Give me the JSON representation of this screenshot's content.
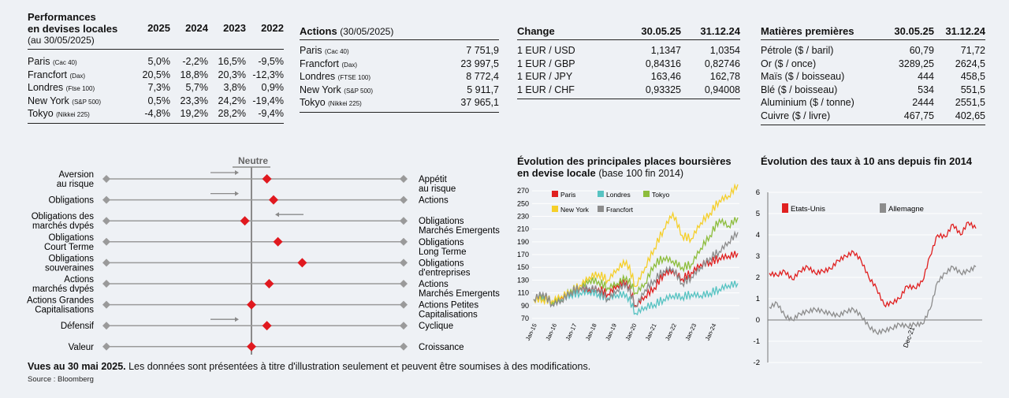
{
  "perf": {
    "title1": "Performances",
    "title2": "en devises locales",
    "subtitle": "(au 30/05/2025)",
    "years": [
      "2025",
      "2024",
      "2023",
      "2022"
    ],
    "rows": [
      {
        "name": "Paris",
        "index": "(Cac 40)",
        "values": [
          "5,0%",
          "-2,2%",
          "16,5%",
          "-9,5%"
        ]
      },
      {
        "name": "Francfort",
        "index": "(Dax)",
        "values": [
          "20,5%",
          "18,8%",
          "20,3%",
          "-12,3%"
        ]
      },
      {
        "name": "Londres",
        "index": "(Ftse 100)",
        "values": [
          "7,3%",
          "5,7%",
          "3,8%",
          "0,9%"
        ]
      },
      {
        "name": "New York",
        "index": "(S&P 500)",
        "values": [
          "0,5%",
          "23,3%",
          "24,2%",
          "-19,4%"
        ]
      },
      {
        "name": "Tokyo",
        "index": "(Nikkei 225)",
        "values": [
          "-4,8%",
          "19,2%",
          "28,2%",
          "-9,4%"
        ]
      }
    ]
  },
  "actions": {
    "title": "Actions",
    "date": "(30/05/2025)",
    "rows": [
      {
        "name": "Paris",
        "index": "(Cac 40)",
        "value": "7 751,9"
      },
      {
        "name": "Francfort",
        "index": "(Dax)",
        "value": "23 997,5"
      },
      {
        "name": "Londres",
        "index": "(FTSE 100)",
        "value": "8 772,4"
      },
      {
        "name": "New York",
        "index": "(S&P 500)",
        "value": "5 911,7"
      },
      {
        "name": "Tokyo",
        "index": "(Nikkei 225)",
        "value": "37 965,1"
      }
    ]
  },
  "change": {
    "title": "Change",
    "col1": "30.05.25",
    "col2": "31.12.24",
    "rows": [
      {
        "pair": "1 EUR / USD",
        "v1": "1,1347",
        "v2": "1,0354"
      },
      {
        "pair": "1 EUR / GBP",
        "v1": "0,84316",
        "v2": "0,82746"
      },
      {
        "pair": "1 EUR / JPY",
        "v1": "163,46",
        "v2": "162,78"
      },
      {
        "pair": "1 EUR / CHF",
        "v1": "0,93325",
        "v2": "0,94008"
      }
    ]
  },
  "commodities": {
    "title": "Matières premières",
    "col1": "30.05.25",
    "col2": "31.12.24",
    "rows": [
      {
        "name": "Pétrole ($ / baril)",
        "v1": "60,79",
        "v2": "71,72"
      },
      {
        "name": "Or ($ / once)",
        "v1": "3289,25",
        "v2": "2624,5"
      },
      {
        "name": "Maïs ($ / boisseau)",
        "v1": "444",
        "v2": "458,5"
      },
      {
        "name": "Blé ($ / boisseau)",
        "v1": "534",
        "v2": "551,5"
      },
      {
        "name": "Aluminium ($ / tonne)",
        "v1": "2444",
        "v2": "2551,5"
      },
      {
        "name": "Cuivre ($ / livre)",
        "v1": "467,75",
        "v2": "402,65"
      }
    ]
  },
  "views": {
    "header": "Neutre",
    "rows": [
      {
        "left": [
          "Aversion",
          "au risque"
        ],
        "right": [
          "Appétit",
          "au risque"
        ],
        "position": 0.7,
        "arrow": "right"
      },
      {
        "left": [
          "Obligations"
        ],
        "right": [
          "Actions"
        ],
        "position": 1.0,
        "arrow": "right"
      },
      {
        "left": [
          "Obligations des",
          "marchés dvpés"
        ],
        "right": [
          "Obligations",
          "Marchés Emergents"
        ],
        "position": -0.3,
        "arrow": "left"
      },
      {
        "left": [
          "Obligations",
          "Court Terme"
        ],
        "right": [
          "Obligations",
          "Long Terme"
        ],
        "position": 1.2,
        "arrow": "none"
      },
      {
        "left": [
          "Obligations",
          "souveraines"
        ],
        "right": [
          "Obligations",
          "d'entreprises"
        ],
        "position": 2.3,
        "arrow": "none"
      },
      {
        "left": [
          "Actions",
          "marchés dvpés"
        ],
        "right": [
          "Actions",
          "Marchés Emergents"
        ],
        "position": 0.8,
        "arrow": "none"
      },
      {
        "left": [
          "Actions Grandes",
          "Capitalisations"
        ],
        "right": [
          "Actions Petites",
          "Capitalisations"
        ],
        "position": 0.0,
        "arrow": "none"
      },
      {
        "left": [
          "Défensif"
        ],
        "right": [
          "Cyclique"
        ],
        "position": 0.7,
        "arrow": "right"
      },
      {
        "left": [
          "Valeur"
        ],
        "right": [
          "Croissance"
        ],
        "position": 0.0,
        "arrow": "none"
      }
    ]
  },
  "chart_data": [
    {
      "type": "line",
      "title": "Évolution des principales places boursières",
      "title2": "en devise locale",
      "subtitle": "(base 100 fin 2014)",
      "x": [
        "2015",
        "2015.5",
        "2016",
        "2016.5",
        "2017",
        "2017.5",
        "2018",
        "2018.5",
        "2019",
        "2019.5",
        "2020",
        "2020.2",
        "2020.5",
        "2021",
        "2021.5",
        "2022",
        "2022.5",
        "2023",
        "2023.5",
        "2024",
        "2024.5",
        "2025",
        "2025.4"
      ],
      "xticks": [
        "Jan-15",
        "Jan-16",
        "Jan-17",
        "Jan-18",
        "Jan-19",
        "Jan-20",
        "Jan-21",
        "Jan-22",
        "Jan-23",
        "Jan-24"
      ],
      "yticks": [
        70,
        90,
        110,
        130,
        150,
        170,
        190,
        210,
        230,
        250,
        270
      ],
      "ylim": [
        70,
        280
      ],
      "series": [
        {
          "name": "Paris",
          "color": "#e02020",
          "values": [
            100,
            108,
            95,
            104,
            110,
            118,
            115,
            117,
            108,
            122,
            128,
            90,
            105,
            118,
            140,
            145,
            132,
            142,
            155,
            158,
            165,
            168,
            172
          ]
        },
        {
          "name": "Londres",
          "color": "#57c3c2",
          "values": [
            100,
            103,
            96,
            100,
            108,
            110,
            112,
            108,
            102,
            107,
            108,
            78,
            88,
            92,
            100,
            106,
            104,
            108,
            106,
            110,
            116,
            122,
            125
          ]
        },
        {
          "name": "Tokyo",
          "color": "#8dbd3c",
          "values": [
            100,
            108,
            95,
            98,
            115,
            118,
            130,
            128,
            118,
            125,
            135,
            110,
            125,
            155,
            165,
            160,
            150,
            155,
            180,
            200,
            225,
            215,
            228
          ]
        },
        {
          "name": "New York",
          "color": "#f5cf2a",
          "values": [
            100,
            100,
            98,
            105,
            112,
            122,
            135,
            140,
            130,
            148,
            160,
            120,
            150,
            180,
            210,
            235,
            200,
            195,
            220,
            235,
            255,
            262,
            280
          ]
        },
        {
          "name": "Francfort",
          "color": "#8c8c8c",
          "values": [
            100,
            110,
            92,
            98,
            112,
            118,
            118,
            115,
            100,
            115,
            125,
            88,
            115,
            130,
            145,
            148,
            125,
            135,
            150,
            165,
            175,
            190,
            205
          ]
        }
      ]
    },
    {
      "type": "line",
      "title": "Évolution des taux à 10 ans depuis fin 2014",
      "xticks": [
        "Dec-21"
      ],
      "yticks": [
        6,
        5,
        4,
        3,
        2,
        1,
        0,
        -1,
        -2
      ],
      "ylim": [
        -2,
        6
      ],
      "series": [
        {
          "name": "Etats-Unis",
          "color": "#e02020",
          "values": [
            2.2,
            2.1,
            2.3,
            1.9,
            2.3,
            2.5,
            2.2,
            2.3,
            2.4,
            2.8,
            3.0,
            3.2,
            2.8,
            2.0,
            1.5,
            0.7,
            0.8,
            1.0,
            1.6,
            1.5,
            1.8,
            3.0,
            4.0,
            3.9,
            4.5,
            4.0,
            4.6,
            4.3
          ]
        },
        {
          "name": "Allemagne",
          "color": "#8c8c8c",
          "values": [
            0.6,
            0.8,
            0.2,
            0.0,
            0.3,
            0.4,
            0.5,
            0.4,
            0.3,
            0.2,
            0.4,
            0.5,
            0.2,
            -0.3,
            -0.6,
            -0.5,
            -0.4,
            -0.2,
            -0.3,
            -0.2,
            -0.2,
            0.5,
            1.8,
            2.2,
            2.5,
            2.2,
            2.3,
            2.5
          ]
        }
      ]
    }
  ],
  "footer": {
    "bold": "Vues au 30 mai 2025.",
    "text": "Les données sont présentées à titre d'illustration seulement et peuvent être soumises à des modifications.",
    "source": "Source : Bloomberg"
  }
}
